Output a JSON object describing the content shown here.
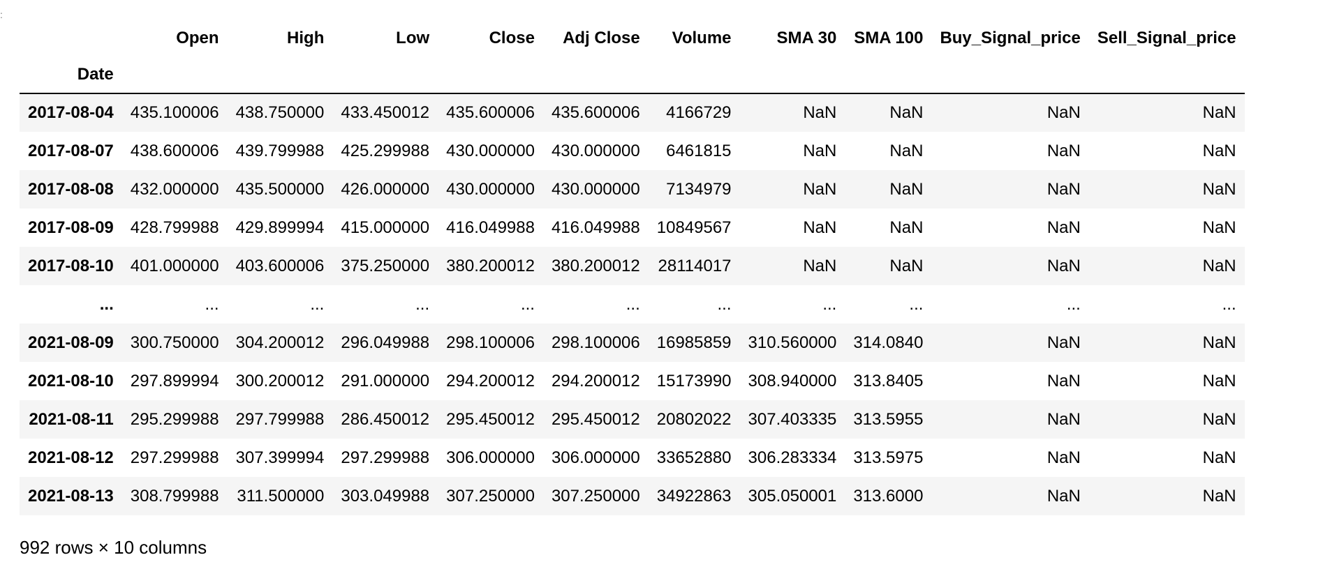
{
  "table": {
    "columns": [
      "Open",
      "High",
      "Low",
      "Close",
      "Adj Close",
      "Volume",
      "SMA 30",
      "SMA 100",
      "Buy_Signal_price",
      "Sell_Signal_price"
    ],
    "index_name": "Date",
    "rows": [
      {
        "index": "2017-08-04",
        "cells": [
          "435.100006",
          "438.750000",
          "433.450012",
          "435.600006",
          "435.600006",
          "4166729",
          "NaN",
          "NaN",
          "NaN",
          "NaN"
        ]
      },
      {
        "index": "2017-08-07",
        "cells": [
          "438.600006",
          "439.799988",
          "425.299988",
          "430.000000",
          "430.000000",
          "6461815",
          "NaN",
          "NaN",
          "NaN",
          "NaN"
        ]
      },
      {
        "index": "2017-08-08",
        "cells": [
          "432.000000",
          "435.500000",
          "426.000000",
          "430.000000",
          "430.000000",
          "7134979",
          "NaN",
          "NaN",
          "NaN",
          "NaN"
        ]
      },
      {
        "index": "2017-08-09",
        "cells": [
          "428.799988",
          "429.899994",
          "415.000000",
          "416.049988",
          "416.049988",
          "10849567",
          "NaN",
          "NaN",
          "NaN",
          "NaN"
        ]
      },
      {
        "index": "2017-08-10",
        "cells": [
          "401.000000",
          "403.600006",
          "375.250000",
          "380.200012",
          "380.200012",
          "28114017",
          "NaN",
          "NaN",
          "NaN",
          "NaN"
        ]
      },
      {
        "index": "...",
        "cells": [
          "...",
          "...",
          "...",
          "...",
          "...",
          "...",
          "...",
          "...",
          "...",
          "..."
        ]
      },
      {
        "index": "2021-08-09",
        "cells": [
          "300.750000",
          "304.200012",
          "296.049988",
          "298.100006",
          "298.100006",
          "16985859",
          "310.560000",
          "314.0840",
          "NaN",
          "NaN"
        ]
      },
      {
        "index": "2021-08-10",
        "cells": [
          "297.899994",
          "300.200012",
          "291.000000",
          "294.200012",
          "294.200012",
          "15173990",
          "308.940000",
          "313.8405",
          "NaN",
          "NaN"
        ]
      },
      {
        "index": "2021-08-11",
        "cells": [
          "295.299988",
          "297.799988",
          "286.450012",
          "295.450012",
          "295.450012",
          "20802022",
          "307.403335",
          "313.5955",
          "NaN",
          "NaN"
        ]
      },
      {
        "index": "2021-08-12",
        "cells": [
          "297.299988",
          "307.399994",
          "297.299988",
          "306.000000",
          "306.000000",
          "33652880",
          "306.283334",
          "313.5975",
          "NaN",
          "NaN"
        ]
      },
      {
        "index": "2021-08-13",
        "cells": [
          "308.799988",
          "311.500000",
          "303.049988",
          "307.250000",
          "307.250000",
          "34922863",
          "305.050001",
          "313.6000",
          "NaN",
          "NaN"
        ]
      }
    ]
  },
  "footer": {
    "shape_text": "992 rows × 10 columns"
  }
}
